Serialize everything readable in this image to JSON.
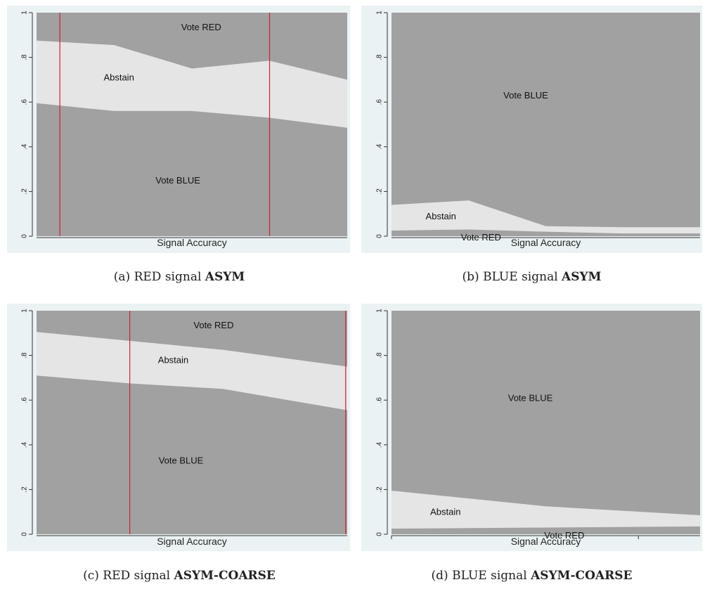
{
  "chart_data": [
    {
      "type": "area",
      "caption_prefix": "(a) RED signal ",
      "caption_bold": "ASYM",
      "xlabel": "Signal Accuracy",
      "ylabel": "",
      "ylim": [
        0,
        1
      ],
      "y_ticks": [
        "0",
        ".2",
        ".4",
        ".6",
        ".8",
        "1"
      ],
      "y_tick_values": [
        0,
        0.2,
        0.4,
        0.6,
        0.8,
        1
      ],
      "x": [
        0,
        0.25,
        0.5,
        0.75,
        1
      ],
      "lower": [
        0.595,
        0.56,
        0.56,
        0.53,
        0.485
      ],
      "upper": [
        0.875,
        0.855,
        0.75,
        0.785,
        0.7
      ],
      "vlines": [
        0.075,
        0.75
      ],
      "regions": [
        {
          "label": "Vote RED",
          "x": 0.53,
          "y": 0.935
        },
        {
          "label": "Abstain",
          "x": 0.265,
          "y": 0.71
        },
        {
          "label": "Vote BLUE",
          "x": 0.455,
          "y": 0.25
        }
      ]
    },
    {
      "type": "area",
      "caption_prefix": "(b) BLUE signal ",
      "caption_bold": "ASYM",
      "xlabel": "Signal Accuracy",
      "ylabel": "",
      "ylim": [
        0,
        1
      ],
      "y_ticks": [
        "0",
        ".2",
        ".4",
        ".6",
        ".8",
        "1"
      ],
      "y_tick_values": [
        0,
        0.2,
        0.4,
        0.6,
        0.8,
        1
      ],
      "x": [
        0,
        0.25,
        0.5,
        0.75,
        1
      ],
      "lower": [
        0.025,
        0.03,
        0.02,
        0.012,
        0.012
      ],
      "upper": [
        0.14,
        0.16,
        0.045,
        0.04,
        0.04
      ],
      "vlines": [],
      "regions": [
        {
          "label": "Vote BLUE",
          "x": 0.435,
          "y": 0.63
        },
        {
          "label": "Abstain",
          "x": 0.16,
          "y": 0.09
        },
        {
          "label": "Vote RED",
          "x": 0.29,
          "y": -0.005
        }
      ]
    },
    {
      "type": "area",
      "caption_prefix": "(c) RED signal ",
      "caption_bold": "ASYM-COARSE",
      "xlabel": "Signal Accuracy",
      "ylabel": "",
      "ylim": [
        0,
        1
      ],
      "y_ticks": [
        "0",
        ".2",
        ".4",
        ".6",
        ".8",
        "1"
      ],
      "y_tick_values": [
        0,
        0.2,
        0.4,
        0.6,
        0.8,
        1
      ],
      "x": [
        0,
        0.3,
        0.6,
        1
      ],
      "lower": [
        0.71,
        0.675,
        0.65,
        0.555
      ],
      "upper": [
        0.905,
        0.865,
        0.825,
        0.75
      ],
      "vlines": [
        0.3,
        0.995
      ],
      "regions": [
        {
          "label": "Vote RED",
          "x": 0.57,
          "y": 0.935
        },
        {
          "label": "Abstain",
          "x": 0.44,
          "y": 0.78
        },
        {
          "label": "Vote BLUE",
          "x": 0.465,
          "y": 0.33
        }
      ]
    },
    {
      "type": "area",
      "caption_prefix": "(d) BLUE signal ",
      "caption_bold": "ASYM-COARSE",
      "xlabel": "Signal Accuracy",
      "ylabel": "",
      "ylim": [
        0,
        1
      ],
      "y_ticks": [
        "0",
        ".2",
        ".4",
        ".6",
        ".8",
        "1"
      ],
      "y_tick_values": [
        0,
        0.2,
        0.4,
        0.6,
        0.8,
        1
      ],
      "x": [
        0,
        0.5,
        1
      ],
      "lower": [
        0.025,
        0.03,
        0.035
      ],
      "upper": [
        0.195,
        0.125,
        0.085
      ],
      "vlines": [],
      "x_ticks_marks": [
        0,
        0.8
      ],
      "regions": [
        {
          "label": "Vote BLUE",
          "x": 0.45,
          "y": 0.61
        },
        {
          "label": "Abstain",
          "x": 0.175,
          "y": 0.1
        },
        {
          "label": "Vote RED",
          "x": 0.56,
          "y": -0.005
        }
      ]
    }
  ],
  "colors": {
    "panel_background": "#eaf2f3",
    "plot_background": "#a1a1a1",
    "abstain_band": "#e5e5e5",
    "vline": "#cc2233",
    "axis": "#333333"
  }
}
